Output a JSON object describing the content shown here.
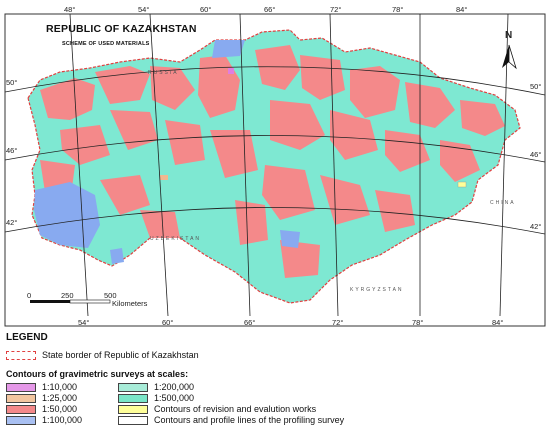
{
  "map": {
    "title": "REPUBLIC OF KAZAKHSTAN",
    "subtitle": "SCHEME OF USED MATERIALS",
    "north_label": "N",
    "longitude_top": [
      "48°",
      "54°",
      "60°",
      "66°",
      "72°",
      "78°",
      "84°"
    ],
    "longitude_bottom": [
      "54°",
      "60°",
      "66°",
      "72°",
      "78°",
      "84°"
    ],
    "latitude_left": [
      "50°",
      "46°",
      "42°"
    ],
    "latitude_right": [
      "50°",
      "46°",
      "42°"
    ],
    "countries": [
      "RUSSIA",
      "UZBEKISTAN",
      "KYRGYZSTAN",
      "CHINA"
    ],
    "scale_bar": {
      "ticks": [
        "0",
        "250",
        "500"
      ],
      "unit": "Kilometers"
    },
    "colors": {
      "cyan": "#7ee8d2",
      "pink": "#f4898a",
      "blue": "#88aaf0",
      "orange": "#f0b890",
      "magenta": "#e07ee0"
    }
  },
  "legend": {
    "title": "LEGEND",
    "border_label": "State border of Republic of Kazakhstan",
    "surveys_heading": "Contours of gravimetric surveys at scales:",
    "items": [
      {
        "label": "1:10,000",
        "color": "#e598e8"
      },
      {
        "label": "1:25,000",
        "color": "#f2c6a0"
      },
      {
        "label": "1:50,000",
        "color": "#f4898a"
      },
      {
        "label": "1:100,000",
        "color": "#a9c0f2"
      },
      {
        "label": "1:200,000",
        "color": "#a8ecd8"
      },
      {
        "label": "1:500,000",
        "color": "#7be6c8"
      },
      {
        "label": "Contours of revision and evalution works",
        "color": "#ffff99"
      },
      {
        "label": "Contours and profile lines of the profiling survey",
        "color": "#ffffff"
      }
    ]
  }
}
